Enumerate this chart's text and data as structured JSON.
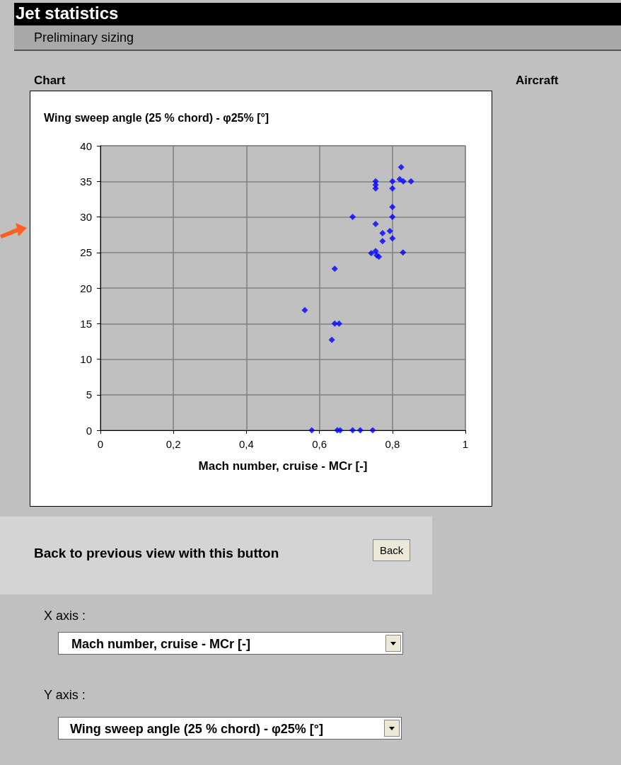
{
  "chart_data": {
    "type": "scatter",
    "title": "Wing sweep angle (25 % chord) - φ25% [°]",
    "xlabel": "Mach number, cruise - MCr [-]",
    "x": [
      0.824,
      0.754,
      0.754,
      0.754,
      0.8,
      0.8,
      0.82,
      0.83,
      0.851,
      0.8,
      0.8,
      0.691,
      0.754,
      0.793,
      0.773,
      0.8,
      0.773,
      0.742,
      0.754,
      0.757,
      0.763,
      0.829,
      0.642,
      0.56,
      0.642,
      0.654,
      0.634,
      0.579,
      0.649,
      0.657,
      0.691,
      0.712,
      0.746
    ],
    "values": [
      37,
      35,
      34.5,
      34,
      35,
      34,
      35.3,
      35,
      35,
      31.4,
      30,
      30,
      29,
      28,
      27.7,
      27,
      26.6,
      24.9,
      25.2,
      24.6,
      24.4,
      25,
      22.7,
      16.9,
      15,
      15,
      12.7,
      0,
      0,
      0,
      0,
      0,
      0
    ],
    "color": "#0000ff",
    "marker": "diamond",
    "grid": true,
    "xlim": [
      0,
      1
    ],
    "xticks": [
      0,
      {
        "value": 0.2,
        "label": "0,2"
      },
      {
        "value": 0.4,
        "label": "0,4"
      },
      {
        "value": 0.6,
        "label": "0,6"
      },
      {
        "value": 0.8,
        "label": "0,8"
      },
      1
    ],
    "ylim": [
      0,
      40
    ],
    "yticks": [
      0,
      5,
      10,
      15,
      20,
      25,
      30,
      35,
      40
    ],
    "annotations": [
      "Jet statistics",
      "Preliminary sizing",
      "Chart",
      "Aircraft",
      "Back to previous view with this button",
      "Back",
      "X axis :",
      "Mach number, cruise - MCr [-]",
      "Y axis :",
      "Wing sweep angle (25 % chord) - φ25% [°]"
    ]
  }
}
